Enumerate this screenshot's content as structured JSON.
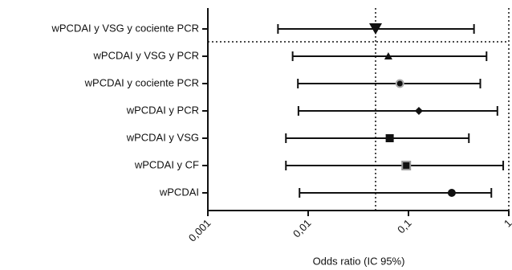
{
  "chart_data": {
    "type": "forest",
    "x_label": "Odds ratio (IC 95%)",
    "xscale": "log",
    "xlim": [
      0.001,
      1
    ],
    "xticks": [
      {
        "value": 0.001,
        "label": "0,001"
      },
      {
        "value": 0.01,
        "label": "0,01"
      },
      {
        "value": 0.1,
        "label": "0,1"
      },
      1
    ],
    "categories": [
      "wPCDAI y VSG y cociente PCR",
      "wPCDAI y VSG y PCR",
      "wPCDAI y cociente PCR",
      "wPCDAI y PCR",
      "wPCDAI y VSG",
      "wPCDAI y CF",
      "wPCDAI"
    ],
    "values": [
      0.047,
      0.063,
      0.082,
      0.127,
      0.065,
      0.095,
      0.27
    ],
    "lower": [
      0.005,
      0.007,
      0.0079,
      0.008,
      0.006,
      0.006,
      0.0082
    ],
    "upper": [
      0.45,
      0.6,
      0.52,
      0.77,
      0.4,
      0.88,
      0.67
    ],
    "markers": [
      "triangle-down",
      "triangle",
      "circle-outlined",
      "diamond",
      "square",
      "square-outlined",
      "circle"
    ],
    "ref_lines": [
      0.047,
      1
    ],
    "color": "#111111"
  }
}
